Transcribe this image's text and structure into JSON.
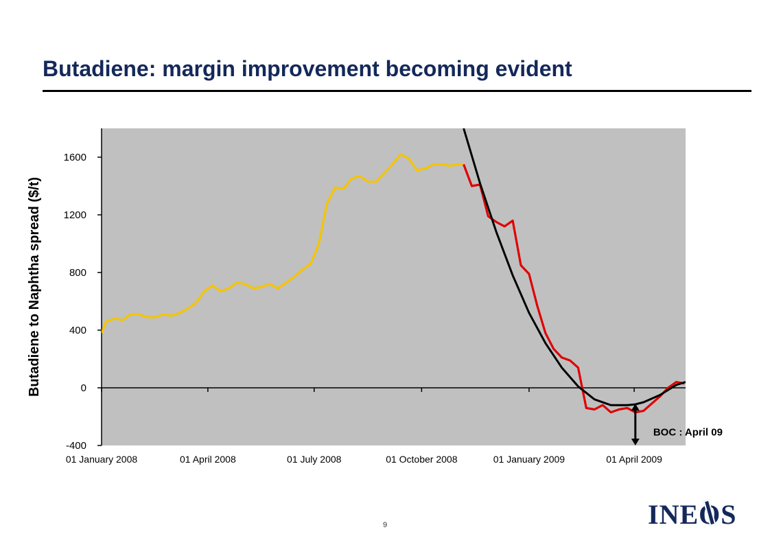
{
  "slide": {
    "title": "Butadiene: margin improvement becoming evident",
    "page_number": "9",
    "logo_text": "INEOS"
  },
  "chart_data": {
    "type": "line",
    "title": "",
    "xlabel": "",
    "ylabel": "Butadiene to Naphtha spread ($/t)",
    "ylim": [
      -400,
      1800
    ],
    "yticks": [
      -400,
      0,
      400,
      800,
      1200,
      1600
    ],
    "x_tick_labels": [
      "01 January 2008",
      "01 April 2008",
      "01 July 2008",
      "01 October 2008",
      "01 January 2009",
      "01 April 2009"
    ],
    "x_axis": {
      "start": "2008-01-01",
      "end": "2009-05-15"
    },
    "grid": false,
    "background": "#c0c0c0",
    "series": [
      {
        "color": "#f5c400",
        "x": [
          "2008-01-01",
          "2008-01-05",
          "2008-01-12",
          "2008-01-19",
          "2008-01-26",
          "2008-02-02",
          "2008-02-09",
          "2008-02-16",
          "2008-02-23",
          "2008-03-01",
          "2008-03-08",
          "2008-03-15",
          "2008-03-22",
          "2008-03-29",
          "2008-04-05",
          "2008-04-12",
          "2008-04-19",
          "2008-04-26",
          "2008-05-03",
          "2008-05-10",
          "2008-05-17",
          "2008-05-24",
          "2008-05-31",
          "2008-06-07",
          "2008-06-14",
          "2008-06-21",
          "2008-06-28",
          "2008-07-05",
          "2008-07-12",
          "2008-07-19",
          "2008-07-26",
          "2008-08-02",
          "2008-08-09",
          "2008-08-16",
          "2008-08-23",
          "2008-08-30",
          "2008-09-06",
          "2008-09-13",
          "2008-09-20",
          "2008-09-27",
          "2008-10-04",
          "2008-10-11",
          "2008-10-18",
          "2008-10-25",
          "2008-11-01",
          "2008-11-06"
        ],
        "values": [
          380,
          460,
          480,
          470,
          510,
          510,
          490,
          490,
          510,
          500,
          520,
          550,
          590,
          670,
          710,
          670,
          690,
          730,
          720,
          690,
          700,
          720,
          690,
          730,
          770,
          820,
          860,
          1000,
          1280,
          1390,
          1380,
          1450,
          1470,
          1430,
          1430,
          1490,
          1550,
          1620,
          1590,
          1510,
          1520,
          1550,
          1550,
          1540,
          1550,
          1550
        ]
      },
      {
        "color": "#e00000",
        "x": [
          "2008-11-06",
          "2008-11-13",
          "2008-11-20",
          "2008-11-27",
          "2008-12-04",
          "2008-12-11",
          "2008-12-18",
          "2008-12-25",
          "2009-01-01",
          "2009-01-08",
          "2009-01-15",
          "2009-01-22",
          "2009-01-29",
          "2009-02-05",
          "2009-02-12",
          "2009-02-19",
          "2009-02-26",
          "2009-03-05",
          "2009-03-12",
          "2009-03-19",
          "2009-03-26",
          "2009-04-02",
          "2009-04-09",
          "2009-04-16",
          "2009-04-23",
          "2009-04-30",
          "2009-05-07",
          "2009-05-14"
        ],
        "values": [
          1550,
          1400,
          1410,
          1190,
          1150,
          1120,
          1160,
          850,
          790,
          570,
          380,
          270,
          210,
          190,
          140,
          -140,
          -150,
          -120,
          -170,
          -150,
          -140,
          -170,
          -160,
          -110,
          -60,
          0,
          40,
          30
        ]
      },
      {
        "color": "#000000",
        "x": [
          "2008-11-06",
          "2008-11-20",
          "2008-12-04",
          "2008-12-18",
          "2009-01-01",
          "2009-01-15",
          "2009-01-29",
          "2009-02-12",
          "2009-02-26",
          "2009-03-12",
          "2009-03-26",
          "2009-04-02",
          "2009-04-09",
          "2009-04-23",
          "2009-05-07",
          "2009-05-15"
        ],
        "values": [
          1800,
          1420,
          1080,
          780,
          520,
          310,
          140,
          10,
          -80,
          -120,
          -120,
          -115,
          -100,
          -50,
          20,
          40
        ]
      }
    ],
    "annotation": {
      "text": "BOC : April 09",
      "x": "2009-04-02",
      "y_from": -110,
      "y_to": -400,
      "arrow_color": "#000000"
    }
  }
}
